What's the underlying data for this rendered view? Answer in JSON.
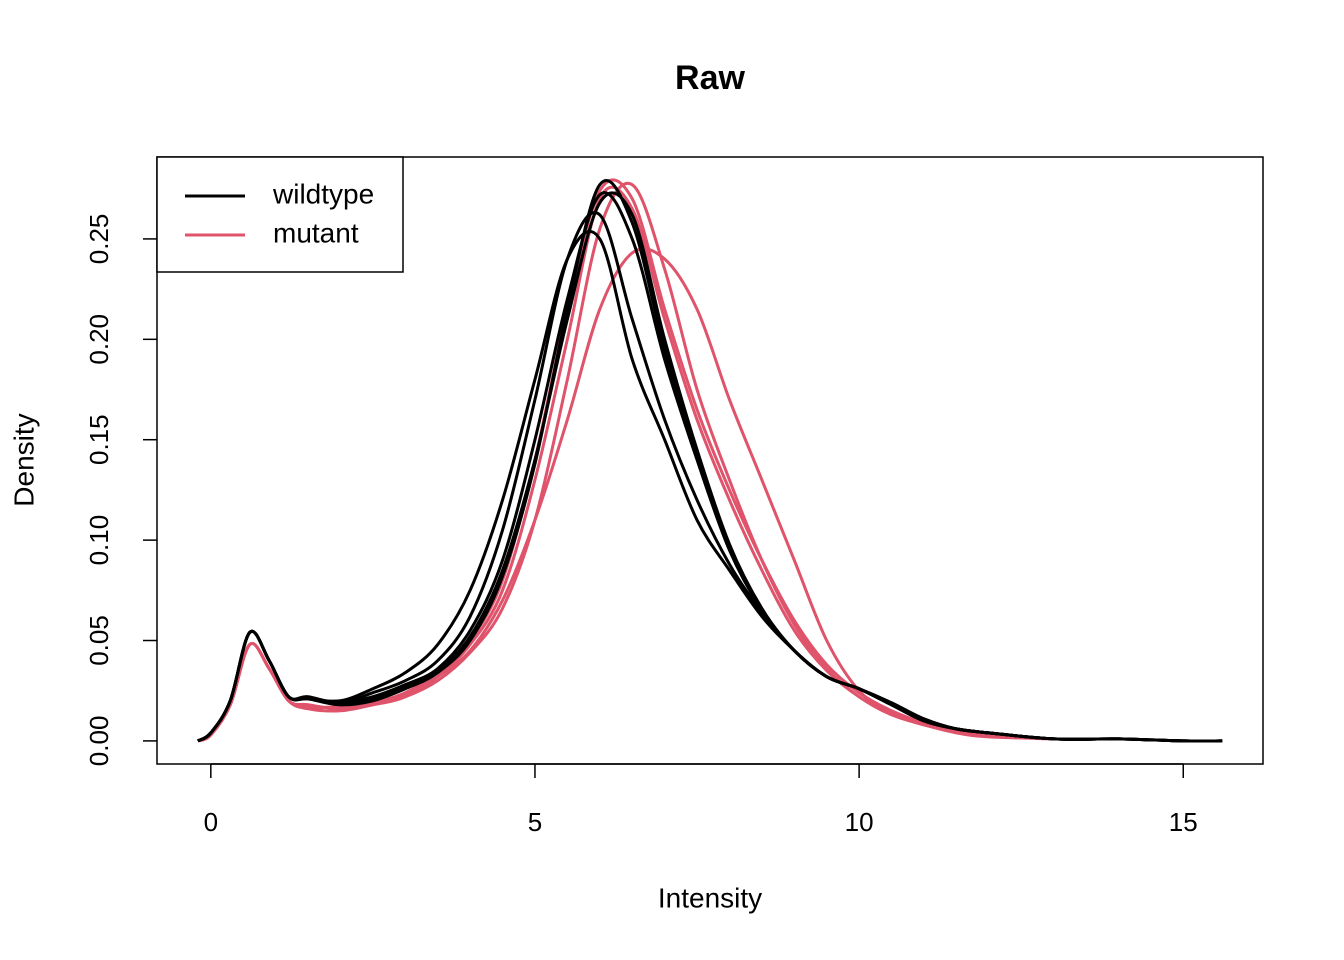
{
  "chart_data": {
    "type": "line",
    "title": "Raw",
    "xlabel": "Intensity",
    "ylabel": "Density",
    "x": [
      -0.2,
      0,
      0.3,
      0.6,
      0.9,
      1.2,
      1.5,
      2,
      2.5,
      3,
      3.5,
      4,
      4.5,
      5,
      5.5,
      6,
      6.5,
      7,
      7.5,
      8,
      8.5,
      9,
      9.5,
      10,
      10.5,
      11,
      11.5,
      12,
      13,
      14,
      15,
      15.6
    ],
    "xlim": [
      -0.83,
      16.23
    ],
    "ylim": [
      -0.0115,
      0.2908
    ],
    "xticks": [
      0,
      5,
      10,
      15
    ],
    "yticks": [
      {
        "value": 0,
        "label": "0.00"
      },
      {
        "value": 0.05,
        "label": "0.05"
      },
      {
        "value": 0.1,
        "label": "0.10"
      },
      {
        "value": 0.15,
        "label": "0.15"
      },
      {
        "value": 0.2,
        "label": "0.20"
      },
      {
        "value": 0.25,
        "label": "0.25"
      }
    ],
    "legend": "top-left",
    "series": [
      {
        "name": "mutant",
        "color": "#df536b",
        "values": [
          [
            0.0,
            0.003,
            0.018,
            0.048,
            0.036,
            0.02,
            0.018,
            0.016,
            0.018,
            0.022,
            0.032,
            0.048,
            0.075,
            0.13,
            0.2,
            0.27,
            0.265,
            0.21,
            0.16,
            0.12,
            0.085,
            0.055,
            0.035,
            0.022,
            0.014,
            0.008,
            0.005,
            0.003,
            0.001,
            null,
            null,
            null
          ],
          [
            0.0,
            0.003,
            0.018,
            0.048,
            0.036,
            0.02,
            0.017,
            0.017,
            0.019,
            0.024,
            0.034,
            0.05,
            0.08,
            0.14,
            0.215,
            0.274,
            0.27,
            0.215,
            0.165,
            0.125,
            0.09,
            0.06,
            0.038,
            0.024,
            0.015,
            0.009,
            0.005,
            0.003,
            0.001,
            null,
            null,
            null
          ],
          [
            0.0,
            0.003,
            0.018,
            0.048,
            0.036,
            0.02,
            0.016,
            0.015,
            0.018,
            0.022,
            0.03,
            0.044,
            0.066,
            0.11,
            0.18,
            0.255,
            0.277,
            0.235,
            0.175,
            0.13,
            0.09,
            0.058,
            0.036,
            0.022,
            0.013,
            0.008,
            0.004,
            0.002,
            0.001,
            null,
            null,
            null
          ],
          [
            0.0,
            0.003,
            0.018,
            0.048,
            0.036,
            0.02,
            0.017,
            0.017,
            0.019,
            0.023,
            0.032,
            0.045,
            0.07,
            0.11,
            0.16,
            0.215,
            0.243,
            0.24,
            0.215,
            0.17,
            0.13,
            0.09,
            0.05,
            0.025,
            0.014,
            0.008,
            0.005,
            0.003,
            0.001,
            null,
            null,
            null
          ]
        ]
      },
      {
        "name": "wildtype",
        "color": "#000000",
        "values": [
          [
            0.0,
            0.004,
            0.02,
            0.054,
            0.04,
            0.022,
            0.021,
            0.019,
            0.022,
            0.028,
            0.036,
            0.055,
            0.09,
            0.15,
            0.22,
            0.272,
            0.25,
            0.19,
            0.14,
            0.095,
            0.065,
            0.045,
            0.032,
            0.026,
            0.018,
            0.01,
            0.006,
            0.004,
            0.001,
            0.001,
            0.0,
            0.0
          ],
          [
            0.0,
            0.004,
            0.02,
            0.054,
            0.04,
            0.022,
            0.021,
            0.02,
            0.026,
            0.034,
            0.048,
            0.075,
            0.12,
            0.18,
            0.24,
            0.25,
            0.19,
            0.15,
            0.11,
            0.085,
            0.062,
            0.045,
            0.032,
            0.026,
            0.019,
            0.011,
            0.006,
            0.004,
            0.001,
            0.001,
            0.0,
            0.0
          ],
          [
            0.0,
            0.004,
            0.02,
            0.054,
            0.04,
            0.022,
            0.022,
            0.019,
            0.024,
            0.03,
            0.04,
            0.062,
            0.105,
            0.17,
            0.24,
            0.262,
            0.21,
            0.16,
            0.12,
            0.088,
            0.064,
            0.045,
            0.032,
            0.026,
            0.018,
            0.01,
            0.006,
            0.004,
            0.001,
            0.001,
            0.0,
            0.0
          ],
          [
            0.0,
            0.004,
            0.02,
            0.054,
            0.04,
            0.022,
            0.021,
            0.018,
            0.021,
            0.027,
            0.035,
            0.052,
            0.085,
            0.14,
            0.21,
            0.268,
            0.262,
            0.2,
            0.145,
            0.098,
            0.066,
            0.045,
            0.032,
            0.026,
            0.018,
            0.01,
            0.006,
            0.004,
            0.001,
            0.001,
            0.0,
            0.0
          ],
          [
            0.0,
            0.004,
            0.02,
            0.054,
            0.04,
            0.022,
            0.021,
            0.018,
            0.02,
            0.026,
            0.034,
            0.05,
            0.082,
            0.138,
            0.215,
            0.277,
            0.258,
            0.195,
            0.142,
            0.096,
            0.065,
            0.045,
            0.032,
            0.026,
            0.018,
            0.01,
            0.006,
            0.004,
            0.001,
            0.001,
            0.0,
            0.0
          ]
        ]
      }
    ]
  }
}
